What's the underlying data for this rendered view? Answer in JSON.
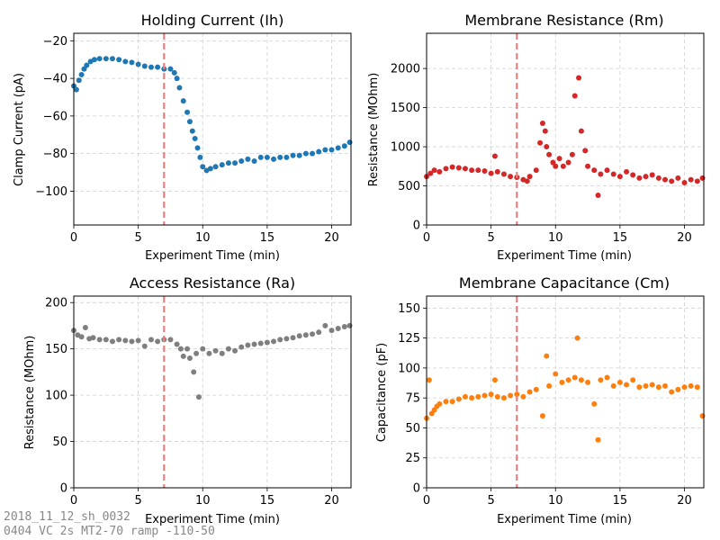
{
  "footer": {
    "line1": "2018_11_12_sh_0032",
    "line2": "0404 VC 2s MT2-70 ramp -110-50"
  },
  "chart_data": [
    {
      "type": "scatter",
      "title": "Holding Current (Ih)",
      "xlabel": "Experiment Time (min)",
      "ylabel": "Clamp Current (pA)",
      "xlim": [
        0,
        21.5
      ],
      "ylim": [
        -118,
        -16
      ],
      "xticks": [
        0,
        5,
        10,
        15,
        20
      ],
      "yticks": [
        -20,
        -40,
        -60,
        -80,
        -100
      ],
      "color": "#1f77b4",
      "grid": true,
      "marker_line_x": 7.0,
      "marker_line_color": "#ef7f7f",
      "series": [
        {
          "values": [
            [
              0,
              -44
            ],
            [
              0.2,
              -46
            ],
            [
              0.4,
              -41
            ],
            [
              0.6,
              -38
            ],
            [
              0.8,
              -35
            ],
            [
              1.0,
              -33
            ],
            [
              1.3,
              -31
            ],
            [
              1.6,
              -30
            ],
            [
              2.0,
              -29.5
            ],
            [
              2.5,
              -29.5
            ],
            [
              3.0,
              -29.5
            ],
            [
              3.5,
              -30
            ],
            [
              4.0,
              -31
            ],
            [
              4.5,
              -31.5
            ],
            [
              5.0,
              -32.5
            ],
            [
              5.5,
              -33.5
            ],
            [
              6.0,
              -34
            ],
            [
              6.5,
              -34
            ],
            [
              7.0,
              -35
            ],
            [
              7.5,
              -35
            ],
            [
              7.8,
              -37
            ],
            [
              8.0,
              -40
            ],
            [
              8.2,
              -45
            ],
            [
              8.5,
              -52
            ],
            [
              8.8,
              -58
            ],
            [
              9.0,
              -63
            ],
            [
              9.2,
              -68
            ],
            [
              9.4,
              -72
            ],
            [
              9.6,
              -77
            ],
            [
              9.8,
              -82
            ],
            [
              10.0,
              -87
            ],
            [
              10.3,
              -89
            ],
            [
              10.6,
              -88
            ],
            [
              11.0,
              -87
            ],
            [
              11.5,
              -86
            ],
            [
              12.0,
              -85
            ],
            [
              12.5,
              -85
            ],
            [
              13.0,
              -84
            ],
            [
              13.5,
              -83
            ],
            [
              14.0,
              -84
            ],
            [
              14.5,
              -82
            ],
            [
              15.0,
              -82
            ],
            [
              15.5,
              -83
            ],
            [
              16.0,
              -82
            ],
            [
              16.5,
              -82
            ],
            [
              17.0,
              -81
            ],
            [
              17.5,
              -81
            ],
            [
              18.0,
              -80
            ],
            [
              18.5,
              -80
            ],
            [
              19.0,
              -79
            ],
            [
              19.5,
              -78
            ],
            [
              20.0,
              -78
            ],
            [
              20.5,
              -77
            ],
            [
              21.0,
              -76
            ],
            [
              21.4,
              -74
            ]
          ]
        }
      ]
    },
    {
      "type": "scatter",
      "title": "Membrane Resistance (Rm)",
      "xlabel": "Experiment Time (min)",
      "ylabel": "Resistance (MOhm)",
      "xlim": [
        0,
        21.5
      ],
      "ylim": [
        0,
        2450
      ],
      "xticks": [
        0,
        5,
        10,
        15,
        20
      ],
      "yticks": [
        0,
        500,
        1000,
        1500,
        2000
      ],
      "color": "#d62728",
      "grid": true,
      "marker_line_x": 7.0,
      "marker_line_color": "#ef7f7f",
      "series": [
        {
          "values": [
            [
              0,
              620
            ],
            [
              0.3,
              660
            ],
            [
              0.6,
              700
            ],
            [
              1.0,
              680
            ],
            [
              1.5,
              720
            ],
            [
              2.0,
              740
            ],
            [
              2.5,
              730
            ],
            [
              3.0,
              720
            ],
            [
              3.5,
              700
            ],
            [
              4.0,
              700
            ],
            [
              4.5,
              690
            ],
            [
              5.0,
              660
            ],
            [
              5.3,
              880
            ],
            [
              5.5,
              680
            ],
            [
              6.0,
              650
            ],
            [
              6.5,
              620
            ],
            [
              7.0,
              610
            ],
            [
              7.5,
              580
            ],
            [
              7.8,
              560
            ],
            [
              8.0,
              620
            ],
            [
              8.5,
              700
            ],
            [
              8.8,
              1050
            ],
            [
              9.0,
              1300
            ],
            [
              9.2,
              1200
            ],
            [
              9.3,
              1000
            ],
            [
              9.5,
              900
            ],
            [
              9.8,
              800
            ],
            [
              10.0,
              750
            ],
            [
              10.3,
              850
            ],
            [
              10.6,
              750
            ],
            [
              11.0,
              800
            ],
            [
              11.3,
              900
            ],
            [
              11.5,
              1650
            ],
            [
              11.8,
              1880
            ],
            [
              12.0,
              1200
            ],
            [
              12.3,
              950
            ],
            [
              12.5,
              750
            ],
            [
              13.0,
              700
            ],
            [
              13.3,
              380
            ],
            [
              13.5,
              650
            ],
            [
              14.0,
              700
            ],
            [
              14.5,
              650
            ],
            [
              15.0,
              620
            ],
            [
              15.5,
              680
            ],
            [
              16.0,
              640
            ],
            [
              16.5,
              600
            ],
            [
              17.0,
              620
            ],
            [
              17.5,
              640
            ],
            [
              18.0,
              600
            ],
            [
              18.5,
              580
            ],
            [
              19.0,
              560
            ],
            [
              19.5,
              600
            ],
            [
              20.0,
              540
            ],
            [
              20.5,
              580
            ],
            [
              21.0,
              560
            ],
            [
              21.4,
              600
            ]
          ]
        }
      ]
    },
    {
      "type": "scatter",
      "title": "Access Resistance (Ra)",
      "xlabel": "Experiment Time (min)",
      "ylabel": "Resistance (MOhm)",
      "xlim": [
        0,
        21.5
      ],
      "ylim": [
        0,
        207
      ],
      "xticks": [
        0,
        5,
        10,
        15,
        20
      ],
      "yticks": [
        0,
        50,
        100,
        150,
        200
      ],
      "color": "#7f7f7f",
      "grid": true,
      "marker_line_x": 7.0,
      "marker_line_color": "#ef7f7f",
      "series": [
        {
          "values": [
            [
              0,
              170
            ],
            [
              0.3,
              165
            ],
            [
              0.6,
              163
            ],
            [
              0.9,
              173
            ],
            [
              1.2,
              161
            ],
            [
              1.5,
              162
            ],
            [
              2.0,
              160
            ],
            [
              2.5,
              160
            ],
            [
              3.0,
              158
            ],
            [
              3.5,
              160
            ],
            [
              4.0,
              159
            ],
            [
              4.5,
              158
            ],
            [
              5.0,
              159
            ],
            [
              5.5,
              153
            ],
            [
              6.0,
              160
            ],
            [
              6.5,
              158
            ],
            [
              7.0,
              160
            ],
            [
              7.5,
              160
            ],
            [
              8.0,
              155
            ],
            [
              8.3,
              150
            ],
            [
              8.5,
              142
            ],
            [
              8.8,
              150
            ],
            [
              9.0,
              140
            ],
            [
              9.3,
              125
            ],
            [
              9.5,
              145
            ],
            [
              9.7,
              98
            ],
            [
              10.0,
              150
            ],
            [
              10.5,
              145
            ],
            [
              11.0,
              148
            ],
            [
              11.5,
              145
            ],
            [
              12.0,
              150
            ],
            [
              12.5,
              148
            ],
            [
              13.0,
              152
            ],
            [
              13.5,
              154
            ],
            [
              14.0,
              155
            ],
            [
              14.5,
              156
            ],
            [
              15.0,
              157
            ],
            [
              15.5,
              158
            ],
            [
              16.0,
              160
            ],
            [
              16.5,
              161
            ],
            [
              17.0,
              162
            ],
            [
              17.5,
              164
            ],
            [
              18.0,
              165
            ],
            [
              18.5,
              166
            ],
            [
              19.0,
              168
            ],
            [
              19.5,
              175
            ],
            [
              20.0,
              170
            ],
            [
              20.5,
              172
            ],
            [
              21.0,
              174
            ],
            [
              21.4,
              175
            ]
          ]
        }
      ]
    },
    {
      "type": "scatter",
      "title": "Membrane Capacitance (Cm)",
      "xlabel": "Experiment Time (min)",
      "ylabel": "Capacitance (pF)",
      "xlim": [
        0,
        21.5
      ],
      "ylim": [
        0,
        160
      ],
      "xticks": [
        0,
        5,
        10,
        15,
        20
      ],
      "yticks": [
        0,
        25,
        50,
        75,
        100,
        125,
        150
      ],
      "color": "#ff7f0e",
      "grid": true,
      "marker_line_x": 7.0,
      "marker_line_color": "#ef7f7f",
      "series": [
        {
          "values": [
            [
              0,
              58
            ],
            [
              0.2,
              90
            ],
            [
              0.4,
              62
            ],
            [
              0.6,
              65
            ],
            [
              0.8,
              68
            ],
            [
              1.0,
              70
            ],
            [
              1.5,
              72
            ],
            [
              2.0,
              72
            ],
            [
              2.5,
              74
            ],
            [
              3.0,
              76
            ],
            [
              3.5,
              75
            ],
            [
              4.0,
              76
            ],
            [
              4.5,
              77
            ],
            [
              5.0,
              78
            ],
            [
              5.3,
              90
            ],
            [
              5.5,
              76
            ],
            [
              6.0,
              75
            ],
            [
              6.5,
              77
            ],
            [
              7.0,
              78
            ],
            [
              7.5,
              76
            ],
            [
              8.0,
              80
            ],
            [
              8.5,
              82
            ],
            [
              9.0,
              60
            ],
            [
              9.3,
              110
            ],
            [
              9.5,
              85
            ],
            [
              10.0,
              95
            ],
            [
              10.5,
              88
            ],
            [
              11.0,
              90
            ],
            [
              11.5,
              92
            ],
            [
              11.7,
              125
            ],
            [
              12.0,
              90
            ],
            [
              12.5,
              88
            ],
            [
              13.0,
              70
            ],
            [
              13.3,
              40
            ],
            [
              13.5,
              90
            ],
            [
              14.0,
              92
            ],
            [
              14.5,
              85
            ],
            [
              15.0,
              88
            ],
            [
              15.5,
              86
            ],
            [
              16.0,
              90
            ],
            [
              16.5,
              84
            ],
            [
              17.0,
              85
            ],
            [
              17.5,
              86
            ],
            [
              18.0,
              84
            ],
            [
              18.5,
              85
            ],
            [
              19.0,
              80
            ],
            [
              19.5,
              82
            ],
            [
              20.0,
              84
            ],
            [
              20.5,
              85
            ],
            [
              21.0,
              84
            ],
            [
              21.4,
              60
            ]
          ]
        }
      ]
    }
  ]
}
